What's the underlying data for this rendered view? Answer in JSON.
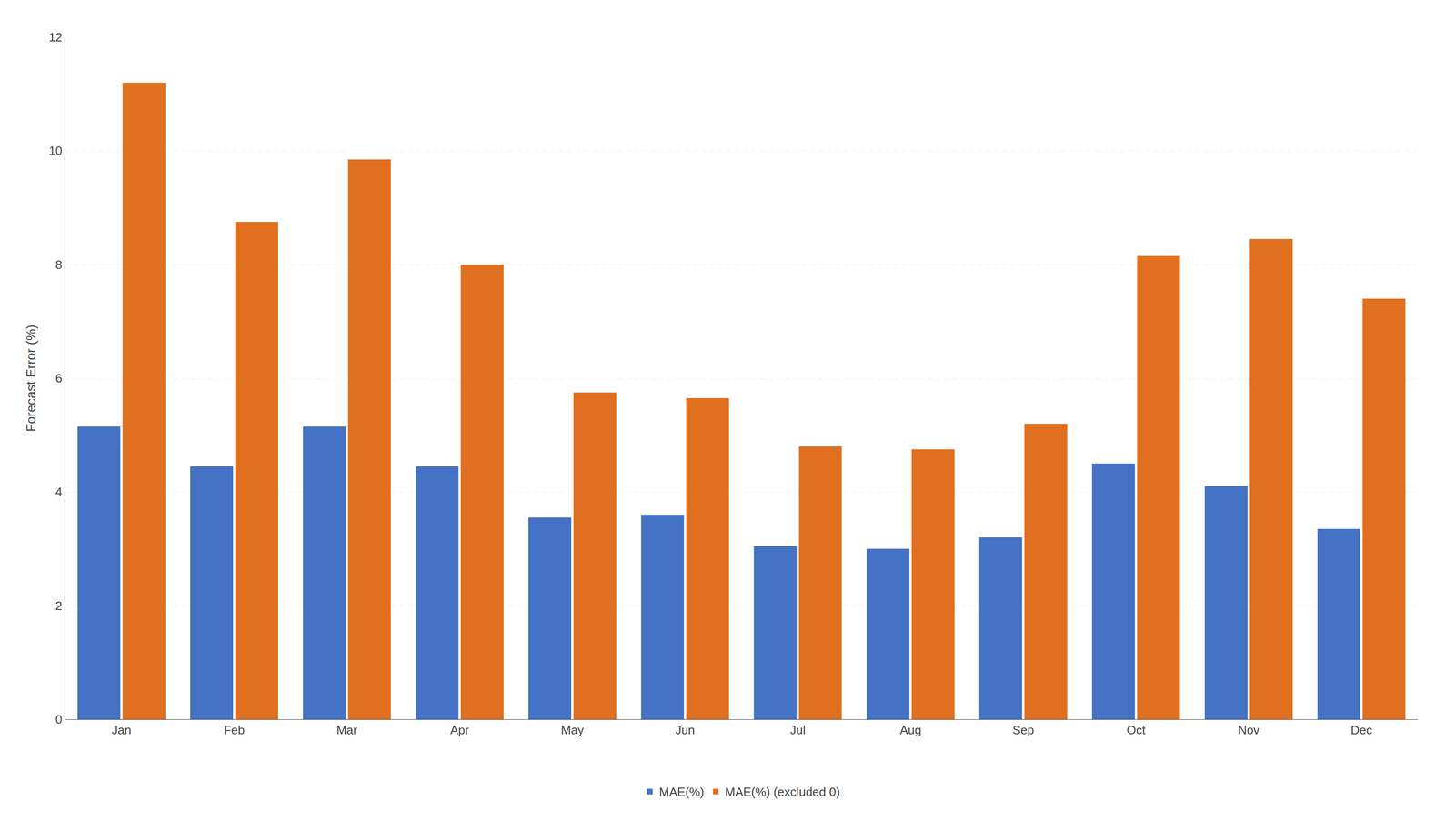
{
  "chart_data": {
    "type": "bar",
    "categories": [
      "Jan",
      "Feb",
      "Mar",
      "Apr",
      "May",
      "Jun",
      "Jul",
      "Aug",
      "Sep",
      "Oct",
      "Nov",
      "Dec"
    ],
    "series": [
      {
        "name": "MAE(%)",
        "color": "#4472C4",
        "values": [
          5.15,
          4.45,
          5.15,
          4.45,
          3.55,
          3.6,
          3.05,
          3.0,
          3.2,
          4.5,
          4.1,
          3.35
        ]
      },
      {
        "name": "MAE(%) (excluded 0)",
        "color": "#E07020",
        "values": [
          11.2,
          8.75,
          9.85,
          8.0,
          5.75,
          5.65,
          4.8,
          4.75,
          5.2,
          8.15,
          8.45,
          7.4
        ]
      }
    ],
    "ylabel": "Forecast Error (%)",
    "ylim": [
      0,
      12
    ],
    "yticks": [
      0,
      2,
      4,
      6,
      8,
      10,
      12
    ],
    "grid": true,
    "legend": "bottom"
  }
}
